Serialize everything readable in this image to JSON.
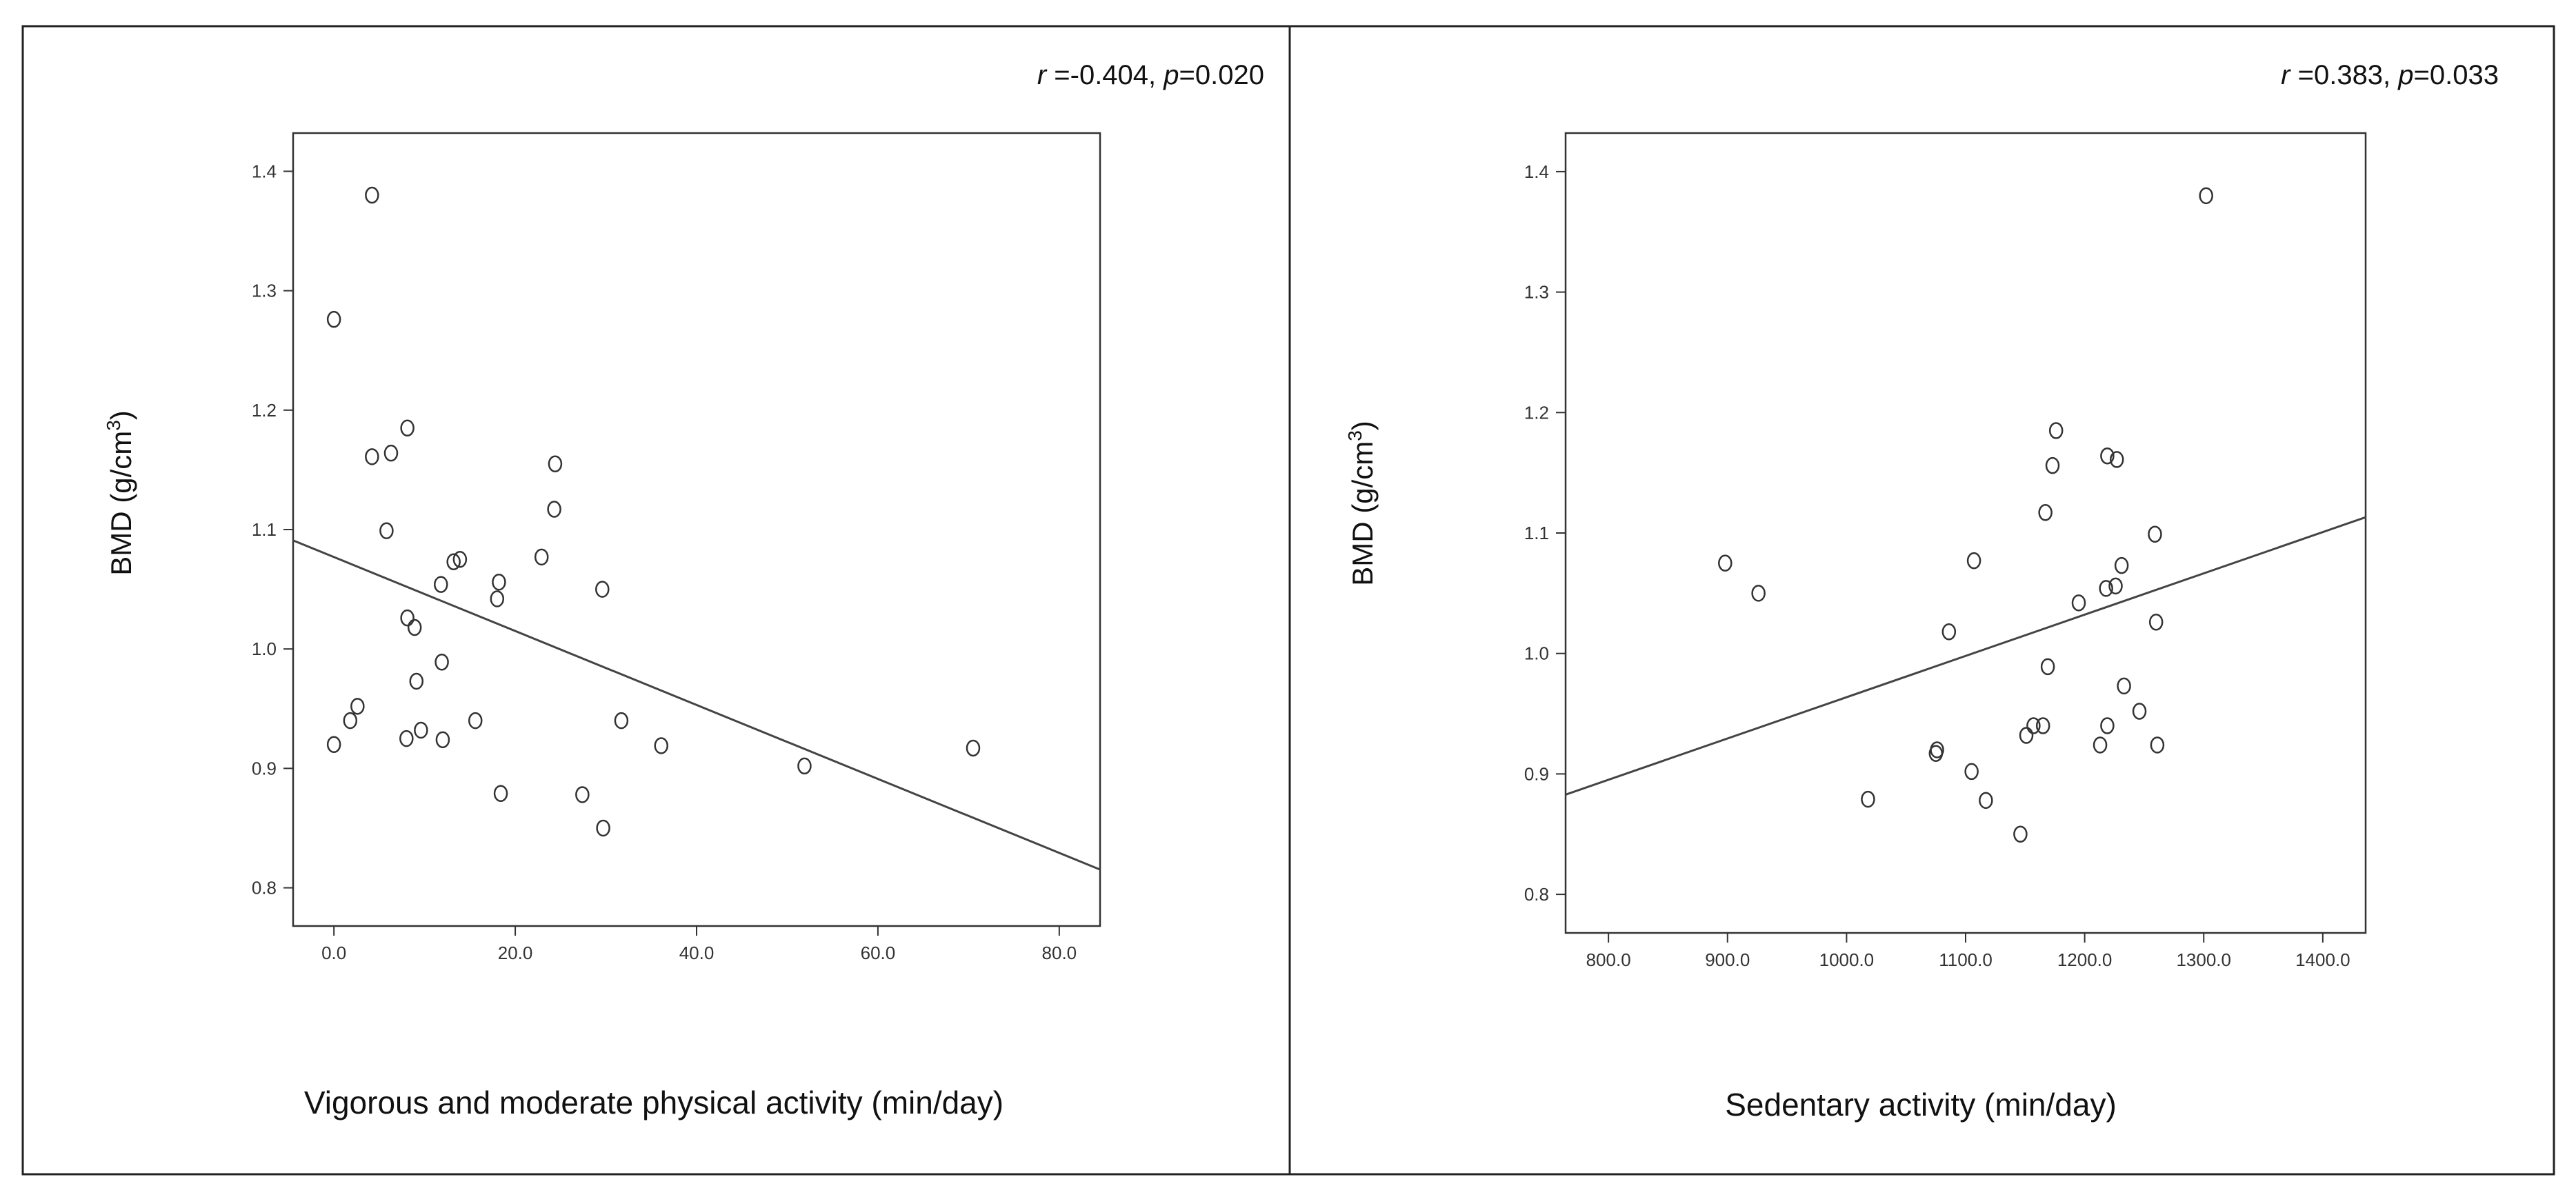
{
  "chart_data": [
    {
      "type": "scatter",
      "title": "",
      "stat": {
        "r_symbol": "r",
        "r_value": " =-0.404, ",
        "p_symbol": "p",
        "p_value": "=0.020"
      },
      "xlabel": "Vigorous and moderate physical activity (min/day)",
      "ylabel": {
        "main": "BMD (g/cm",
        "sup": "3",
        "close": ")"
      },
      "xlim": [
        -4.5,
        84.5
      ],
      "ylim": [
        0.768,
        1.432
      ],
      "xticks": [
        0.0,
        20.0,
        40.0,
        60.0,
        80.0
      ],
      "xtick_labels": [
        "0.0",
        "20.0",
        "40.0",
        "60.0",
        "80.0"
      ],
      "yticks": [
        0.8,
        0.9,
        1.0,
        1.1,
        1.2,
        1.3,
        1.4
      ],
      "ytick_labels": [
        "0.8",
        "0.9",
        "1.0",
        "1.1",
        "1.2",
        "1.3",
        "1.4"
      ],
      "grid": false,
      "points": [
        [
          0.0,
          1.276
        ],
        [
          4.2,
          1.38
        ],
        [
          4.2,
          1.161
        ],
        [
          6.3,
          1.164
        ],
        [
          8.1,
          1.185
        ],
        [
          5.8,
          1.099
        ],
        [
          13.2,
          1.073
        ],
        [
          13.9,
          1.075
        ],
        [
          11.8,
          1.054
        ],
        [
          18.2,
          1.056
        ],
        [
          18.0,
          1.042
        ],
        [
          8.1,
          1.026
        ],
        [
          8.9,
          1.018
        ],
        [
          11.9,
          0.989
        ],
        [
          9.1,
          0.973
        ],
        [
          2.6,
          0.952
        ],
        [
          1.8,
          0.94
        ],
        [
          0.0,
          0.92
        ],
        [
          9.6,
          0.932
        ],
        [
          8.0,
          0.925
        ],
        [
          12.0,
          0.924
        ],
        [
          15.6,
          0.94
        ],
        [
          18.4,
          0.879
        ],
        [
          24.4,
          1.155
        ],
        [
          24.3,
          1.117
        ],
        [
          22.9,
          1.077
        ],
        [
          29.6,
          1.05
        ],
        [
          31.7,
          0.94
        ],
        [
          36.1,
          0.919
        ],
        [
          27.4,
          0.878
        ],
        [
          29.7,
          0.85
        ],
        [
          51.9,
          0.902
        ],
        [
          70.5,
          0.917
        ]
      ],
      "fit_line": {
        "x": [
          -4.5,
          84.5
        ],
        "y": [
          1.0909,
          0.8153
        ]
      }
    },
    {
      "type": "scatter",
      "title": "",
      "stat": {
        "r_symbol": "r",
        "r_value": " =0.383, ",
        "p_symbol": "p",
        "p_value": "=0.033"
      },
      "xlabel": "Sedentary activity (min/day)",
      "ylabel": {
        "main": "BMD (g/cm",
        "sup": "3",
        "close": ")"
      },
      "xlim": [
        764,
        1436
      ],
      "ylim": [
        0.768,
        1.432
      ],
      "xticks": [
        800.0,
        900.0,
        1000.0,
        1100.0,
        1200.0,
        1300.0,
        1400.0
      ],
      "xtick_labels": [
        "800.0",
        "900.0",
        "1000.0",
        "1100.0",
        "1200.0",
        "1300.0",
        "1400.0"
      ],
      "yticks": [
        0.8,
        0.9,
        1.0,
        1.1,
        1.2,
        1.3,
        1.4
      ],
      "ytick_labels": [
        "0.8",
        "0.9",
        "1.0",
        "1.1",
        "1.2",
        "1.3",
        "1.4"
      ],
      "grid": false,
      "points": [
        [
          898,
          1.075
        ],
        [
          926,
          1.05
        ],
        [
          1302,
          1.38
        ],
        [
          1219,
          1.164
        ],
        [
          1227,
          1.161
        ],
        [
          1176,
          1.185
        ],
        [
          1173,
          1.156
        ],
        [
          1167,
          1.117
        ],
        [
          1107,
          1.077
        ],
        [
          1086,
          1.018
        ],
        [
          1195,
          1.042
        ],
        [
          1218,
          1.054
        ],
        [
          1226,
          1.056
        ],
        [
          1231,
          1.073
        ],
        [
          1259,
          1.099
        ],
        [
          1260,
          1.026
        ],
        [
          1169,
          0.989
        ],
        [
          1233,
          0.973
        ],
        [
          1246,
          0.952
        ],
        [
          1157,
          0.94
        ],
        [
          1165,
          0.94
        ],
        [
          1219,
          0.94
        ],
        [
          1151,
          0.932
        ],
        [
          1213,
          0.924
        ],
        [
          1261,
          0.924
        ],
        [
          1075,
          0.917
        ],
        [
          1076,
          0.92
        ],
        [
          1105,
          0.902
        ],
        [
          1018,
          0.879
        ],
        [
          1117,
          0.878
        ],
        [
          1146,
          0.85
        ]
      ],
      "fit_line": {
        "x": [
          764,
          1436
        ],
        "y": [
          0.8828,
          1.1131
        ]
      }
    }
  ]
}
